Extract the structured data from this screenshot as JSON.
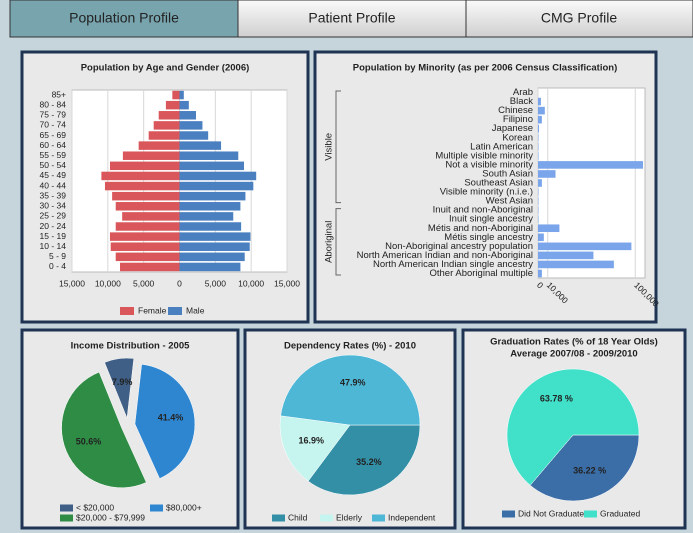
{
  "tabs": [
    "Population Profile",
    "Patient Profile",
    "CMG Profile"
  ],
  "chart_data": [
    {
      "type": "bar",
      "orientation": "horizontal",
      "title": "Population by Age and Gender (2006)",
      "categories": [
        "85+",
        "80 - 84",
        "75 - 79",
        "70 - 74",
        "65 - 69",
        "60 - 64",
        "55 - 59",
        "50 - 54",
        "45 - 49",
        "40 - 44",
        "35 - 39",
        "30 - 34",
        "25 - 29",
        "20 - 24",
        "15 - 19",
        "10 - 14",
        "5 - 9",
        "0 - 4"
      ],
      "series": [
        {
          "name": "Female",
          "color": "#d9575a",
          "values": [
            -1000,
            -1900,
            -2900,
            -3600,
            -4300,
            -5700,
            -7900,
            -9700,
            -10900,
            -10400,
            -9400,
            -8900,
            -8000,
            -8900,
            -9700,
            -9600,
            -8900,
            -8300
          ]
        },
        {
          "name": "Male",
          "color": "#4a7fc0",
          "values": [
            600,
            1300,
            2300,
            3200,
            4000,
            5800,
            8200,
            9000,
            10700,
            10300,
            9200,
            8500,
            7500,
            8600,
            9900,
            9800,
            9100,
            8500
          ]
        }
      ],
      "xlim": [
        -15000,
        15000
      ],
      "xticks": [
        {
          "value": -15000,
          "label": "15,000"
        },
        {
          "value": -10000,
          "label": "10,000"
        },
        {
          "value": -5000,
          "label": "5,000"
        },
        0,
        {
          "value": 5000,
          "label": "5,000"
        },
        {
          "value": 10000,
          "label": "10,000"
        },
        {
          "value": 15000,
          "label": "15,000"
        }
      ],
      "grid": true,
      "legend": "bottom"
    },
    {
      "type": "bar",
      "orientation": "horizontal",
      "title": "Population by Minority (as per 2006 Census Classification)",
      "groups": [
        "Visible",
        "Aboriginal"
      ],
      "categories": [
        "Arab",
        "Black",
        "Chinese",
        "Filipino",
        "Japanese",
        "Korean",
        "Latin American",
        "Multiple visible minority",
        "Not a visible minority",
        "South Asian",
        "Southeast Asian",
        "Visible minority (n.i.e.)",
        "West Asian",
        "Inuit and non-Aboriginal",
        "Inuit single ancestry",
        "Métis and non-Aboriginal",
        "Métis single ancestry",
        "Non-Aboriginal ancestry population",
        "North American Indian and non-Aboriginal",
        "North American Indian single ancestry",
        "Other Aboriginal multiple"
      ],
      "values": [
        0,
        3000,
        7000,
        4000,
        1000,
        500,
        500,
        500,
        108000,
        18000,
        4000,
        500,
        500,
        500,
        500,
        22000,
        6000,
        96000,
        57000,
        78000,
        4000
      ],
      "color": "#7aa5ea",
      "xlim": [
        0,
        110000
      ],
      "xticks": [
        0,
        {
          "value": 10000,
          "label": "10,000"
        },
        {
          "value": 100000,
          "label": "100,000"
        }
      ],
      "grid": true
    },
    {
      "type": "pie",
      "title": "Income Distribution - 2005",
      "categories": [
        "< $20,000",
        "$80,000+",
        "$20,000 - $79,999"
      ],
      "values": [
        7.9,
        41.4,
        50.6
      ],
      "value_labels": [
        "7.9%",
        "41.4%",
        "50.6%"
      ],
      "colors": [
        "#3f5f86",
        "#2f86d0",
        "#2f8c45"
      ],
      "legend": "bottom"
    },
    {
      "type": "pie",
      "title": "Dependency Rates (%) - 2010",
      "categories": [
        "Child",
        "Elderly",
        "Independent"
      ],
      "values": [
        35.2,
        16.9,
        47.9
      ],
      "value_labels": [
        "35.2%",
        "16.9%",
        "47.9%"
      ],
      "colors": [
        "#338fa6",
        "#c6f4ee",
        "#4fb7d6"
      ],
      "legend": "bottom"
    },
    {
      "type": "pie",
      "title": "Graduation Rates (% of 18 Year Olds)",
      "subtitle": "Average 2007/08 - 2009/2010",
      "categories": [
        "Did Not Graduate",
        "Graduated"
      ],
      "values": [
        36.22,
        63.78
      ],
      "value_labels": [
        "36.22 %",
        "63.78 %"
      ],
      "colors": [
        "#3b6da6",
        "#40e0c9"
      ],
      "legend": "bottom"
    }
  ]
}
